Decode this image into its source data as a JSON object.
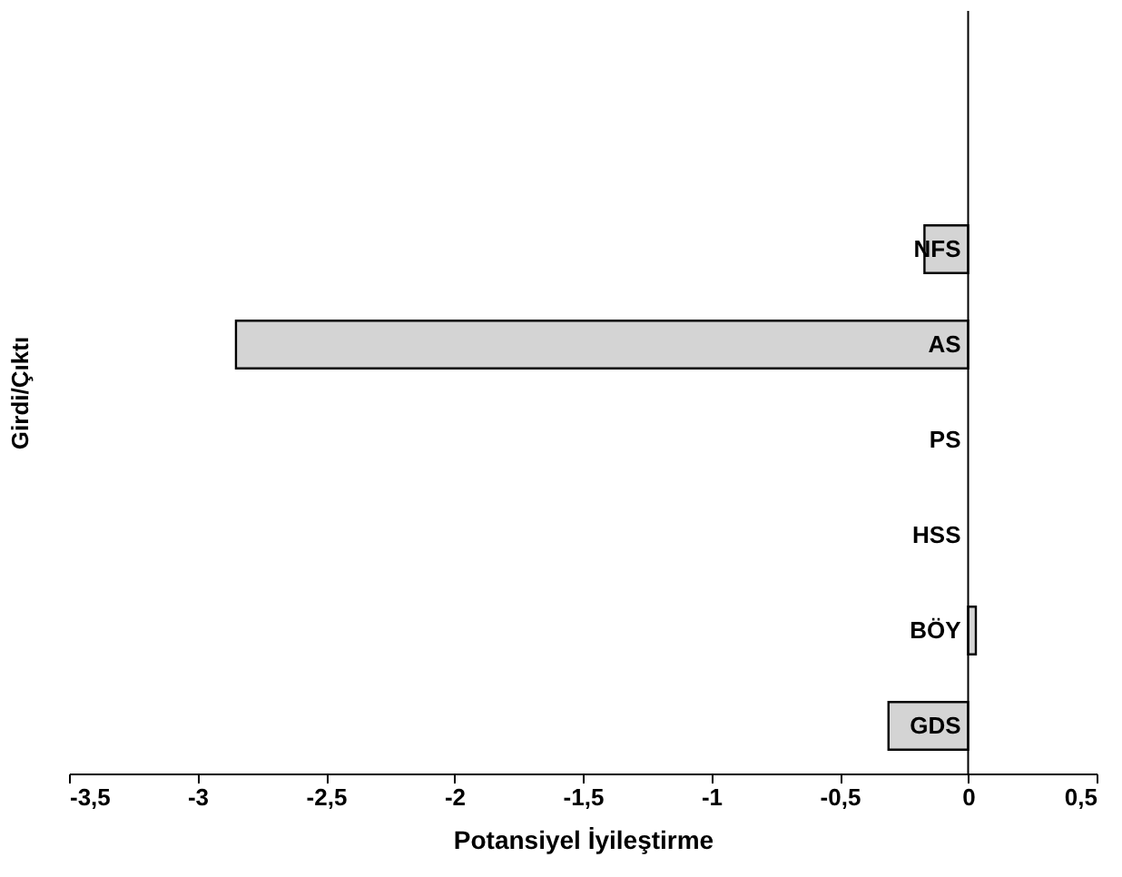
{
  "chart_data": {
    "type": "bar",
    "orientation": "horizontal",
    "xlabel": "Potansiyel İyileştirme",
    "ylabel": "Girdi/Çıktı",
    "categories": [
      null,
      null,
      "NFS",
      "AS",
      "PS",
      "HSS",
      "BÖY",
      "GDS"
    ],
    "values": [
      null,
      null,
      -0.17,
      -2.85,
      0,
      0,
      0.03,
      -0.31
    ],
    "color": "#d4d4d4",
    "xlim": [
      -3.5,
      0.5
    ],
    "xticks": [
      {
        "value": -3.5,
        "label": "-3,5"
      },
      -3,
      {
        "value": -2.5,
        "label": "-2,5"
      },
      -2,
      {
        "value": -1.5,
        "label": "-1,5"
      },
      -1,
      {
        "value": -0.5,
        "label": "-0,5"
      },
      0,
      {
        "value": 0.5,
        "label": "0,5"
      }
    ],
    "grid": false
  }
}
